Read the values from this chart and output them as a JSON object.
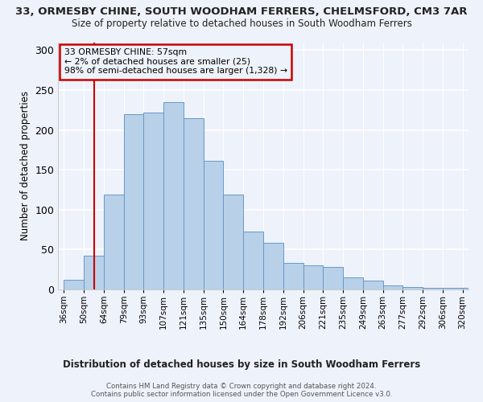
{
  "title1": "33, ORMESBY CHINE, SOUTH WOODHAM FERRERS, CHELMSFORD, CM3 7AR",
  "title2": "Size of property relative to detached houses in South Woodham Ferrers",
  "xlabel": "Distribution of detached houses by size in South Woodham Ferrers",
  "ylabel": "Number of detached properties",
  "bin_labels": [
    "36sqm",
    "50sqm",
    "64sqm",
    "79sqm",
    "93sqm",
    "107sqm",
    "121sqm",
    "135sqm",
    "150sqm",
    "164sqm",
    "178sqm",
    "192sqm",
    "206sqm",
    "221sqm",
    "235sqm",
    "249sqm",
    "263sqm",
    "277sqm",
    "292sqm",
    "306sqm",
    "320sqm"
  ],
  "bar_values": [
    12,
    42,
    119,
    220,
    222,
    235,
    215,
    161,
    119,
    73,
    58,
    33,
    30,
    28,
    15,
    11,
    5,
    3,
    2,
    2,
    2
  ],
  "bar_color": "#b8d0e8",
  "bar_edge_color": "#6699cc",
  "vline_x": 1.5,
  "vline_color": "#cc0000",
  "annotation_text_line0": "33 ORMESBY CHINE: 57sqm",
  "annotation_text_line1": "← 2% of detached houses are smaller (25)",
  "annotation_text_line2": "98% of semi-detached houses are larger (1,328) →",
  "ylim": [
    0,
    310
  ],
  "yticks": [
    0,
    50,
    100,
    150,
    200,
    250,
    300
  ],
  "footer1": "Contains HM Land Registry data © Crown copyright and database right 2024.",
  "footer2": "Contains public sector information licensed under the Open Government Licence v3.0.",
  "bg_color": "#eef2fa"
}
